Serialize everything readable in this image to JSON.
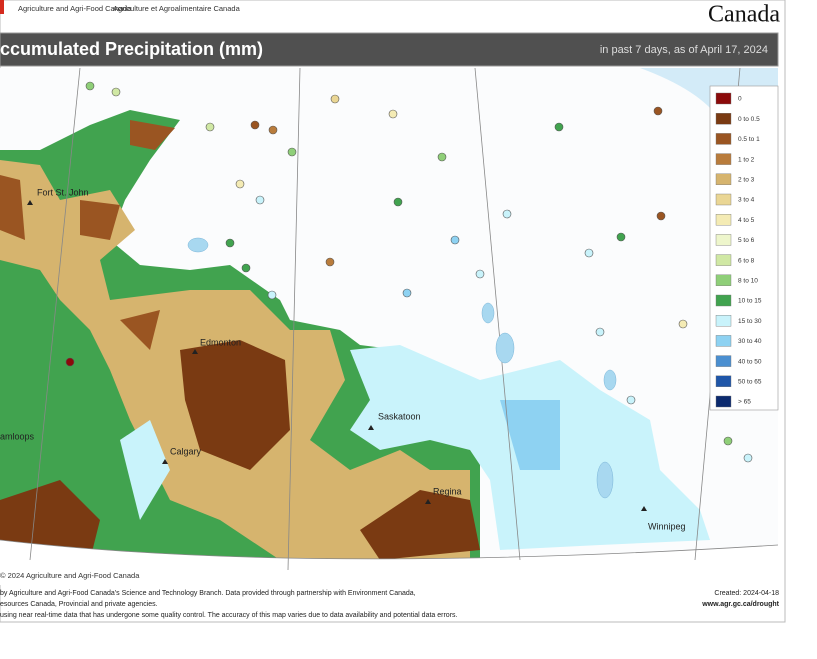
{
  "header": {
    "agency_en": "Agriculture and Agri-Food Canada",
    "agency_fr": "Agriculture et Agroalimentaire Canada",
    "wordmark": "Canada"
  },
  "title": "ccumulated Precipitation (mm)",
  "subtitle": "in past 7 days, as of April 17, 2024",
  "legend": [
    {
      "label": "0",
      "color": "#8b0a0a"
    },
    {
      "label": "0 to 0.5",
      "color": "#7a3a12"
    },
    {
      "label": "0.5 to 1",
      "color": "#9a5522"
    },
    {
      "label": "1 to 2",
      "color": "#b97c3c"
    },
    {
      "label": "2 to 3",
      "color": "#d6b46e"
    },
    {
      "label": "3 to 4",
      "color": "#ead694"
    },
    {
      "label": "4 to 5",
      "color": "#f4ebb4"
    },
    {
      "label": "5 to 6",
      "color": "#eef6cc"
    },
    {
      "label": "6 to 8",
      "color": "#d0e8a4"
    },
    {
      "label": "8 to 10",
      "color": "#8fcf78"
    },
    {
      "label": "10 to 15",
      "color": "#41a34f"
    },
    {
      "label": "15 to 30",
      "color": "#c9f3fb"
    },
    {
      "label": "30 to 40",
      "color": "#8ed2f2"
    },
    {
      "label": "40 to 50",
      "color": "#4b8fd0"
    },
    {
      "label": "50 to 65",
      "color": "#1f56a8"
    },
    {
      "label": "> 65",
      "color": "#0c2a6e"
    }
  ],
  "cities": [
    "Fort St. John",
    "Edmonton",
    "Calgary",
    "Saskatoon",
    "Regina",
    "Winnipeg",
    "amloops"
  ],
  "copyright": "© 2024 Agriculture and Agri-Food Canada",
  "footer": {
    "lines": [
      "by Agriculture and Agri-Food Canada's Science and Technology Branch. Data provided through partnership with Environment Canada,",
      "esources Canada, Provincial and private agencies.",
      "using near real-time data that has undergone some quality control. The accuracy of this map varies due to data availability and potential data errors."
    ],
    "created": "Created: 2024-04-18",
    "url": "www.agr.gc.ca/drought"
  }
}
